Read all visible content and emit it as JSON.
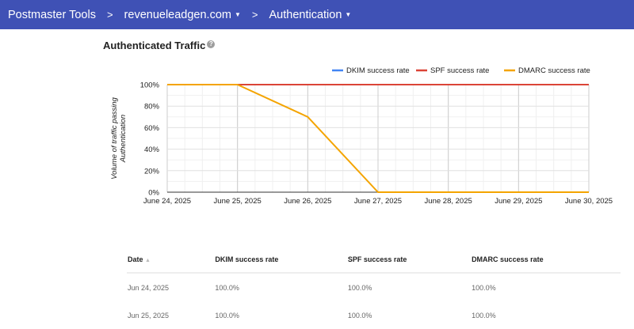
{
  "breadcrumb": {
    "root": "Postmaster Tools",
    "domain": "revenueleadgen.com",
    "section": "Authentication",
    "separator": ">"
  },
  "title": "Authenticated Traffic",
  "help_icon": "question-circle-icon",
  "chart_data": {
    "type": "line",
    "ylabel": "Volume of traffic passing Authentication",
    "x": [
      "June 24, 2025",
      "June 25, 2025",
      "June 26, 2025",
      "June 27, 2025",
      "June 28, 2025",
      "June 29, 2025",
      "June 30, 2025"
    ],
    "yticks": [
      "0%",
      "20%",
      "40%",
      "60%",
      "80%",
      "100%"
    ],
    "ylim": [
      0,
      100
    ],
    "grid": true,
    "legend": "top-right",
    "series": [
      {
        "name": "DKIM success rate",
        "color": "#4285f4",
        "values": [
          100,
          100,
          100,
          100,
          100,
          100,
          100
        ]
      },
      {
        "name": "SPF success rate",
        "color": "#db4437",
        "values": [
          100,
          100,
          100,
          100,
          100,
          100,
          100
        ]
      },
      {
        "name": "DMARC success rate",
        "color": "#f4a400",
        "values": [
          100,
          100,
          70,
          0,
          0,
          0,
          0
        ]
      }
    ]
  },
  "table": {
    "headers": [
      "Date",
      "DKIM success rate",
      "SPF success rate",
      "DMARC success rate"
    ],
    "sort_icon": "sort-ascending-icon",
    "rows": [
      [
        "Jun 24, 2025",
        "100.0%",
        "100.0%",
        "100.0%"
      ],
      [
        "Jun 25, 2025",
        "100.0%",
        "100.0%",
        "100.0%"
      ]
    ]
  }
}
